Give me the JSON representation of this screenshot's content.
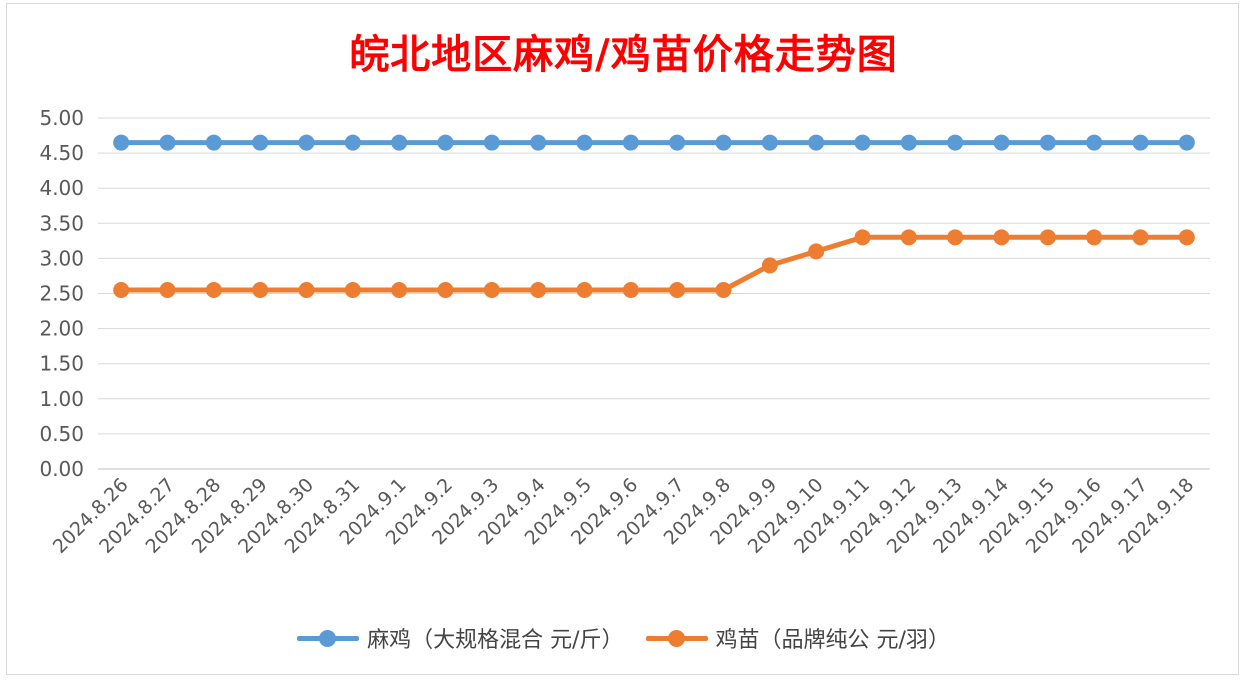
{
  "chart_data": {
    "type": "line",
    "title": "皖北地区麻鸡/鸡苗价格走势图",
    "categories": [
      "2024.8.26",
      "2024.8.27",
      "2024.8.28",
      "2024.8.29",
      "2024.8.30",
      "2024.8.31",
      "2024.9.1",
      "2024.9.2",
      "2024.9.3",
      "2024.9.4",
      "2024.9.5",
      "2024.9.6",
      "2024.9.7",
      "2024.9.8",
      "2024.9.9",
      "2024.9.10",
      "2024.9.11",
      "2024.9.12",
      "2024.9.13",
      "2024.9.14",
      "2024.9.15",
      "2024.9.16",
      "2024.9.17",
      "2024.9.18"
    ],
    "series": [
      {
        "name": "麻鸡（大规格混合 元/斤）",
        "color": "#5b9bd5",
        "values": [
          4.65,
          4.65,
          4.65,
          4.65,
          4.65,
          4.65,
          4.65,
          4.65,
          4.65,
          4.65,
          4.65,
          4.65,
          4.65,
          4.65,
          4.65,
          4.65,
          4.65,
          4.65,
          4.65,
          4.65,
          4.65,
          4.65,
          4.65,
          4.65
        ]
      },
      {
        "name": "鸡苗（品牌纯公 元/羽）",
        "color": "#ed7d31",
        "values": [
          2.55,
          2.55,
          2.55,
          2.55,
          2.55,
          2.55,
          2.55,
          2.55,
          2.55,
          2.55,
          2.55,
          2.55,
          2.55,
          2.55,
          2.9,
          3.1,
          3.3,
          3.3,
          3.3,
          3.3,
          3.3,
          3.3,
          3.3,
          3.3
        ]
      }
    ],
    "ylim": [
      0,
      5
    ],
    "yticks": [
      "0.00",
      "0.50",
      "1.00",
      "1.50",
      "2.00",
      "2.50",
      "3.00",
      "3.50",
      "4.00",
      "4.50",
      "5.00"
    ],
    "grid": true,
    "legend": "bottom"
  }
}
